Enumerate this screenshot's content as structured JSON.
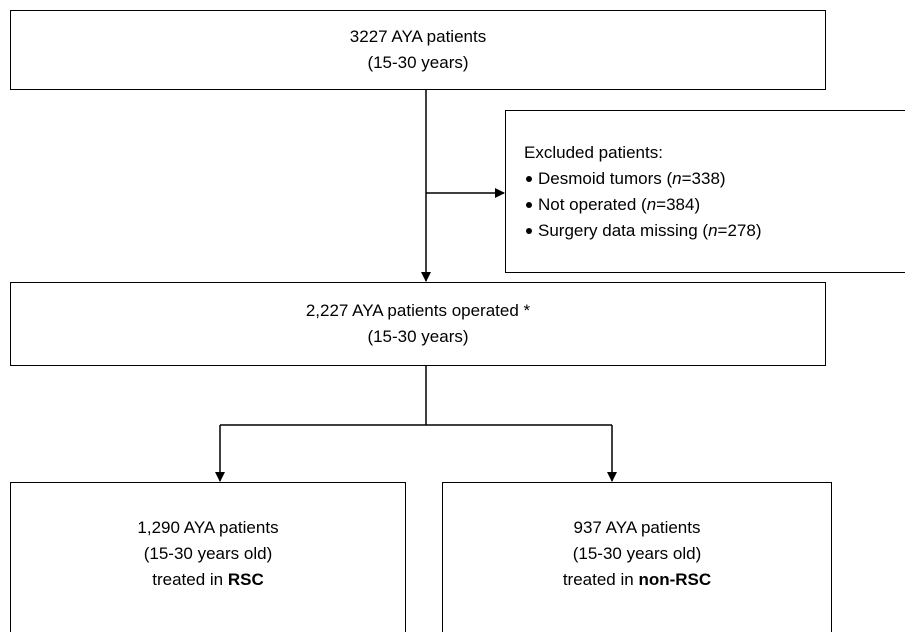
{
  "boxes": {
    "total": {
      "lines": [
        "3227 AYA patients",
        "(15-30 years)"
      ]
    },
    "excluded": {
      "title": "Excluded patients:",
      "items": [
        [
          "Desmoid tumors (",
          "n",
          "=338)"
        ],
        [
          "Not operated (",
          "n",
          "=384)"
        ],
        [
          "Surgery data missing (",
          "n",
          "=278)"
        ]
      ]
    },
    "operated": {
      "lines": [
        "2,227 AYA patients operated *",
        "(15-30 years)"
      ]
    },
    "rsc": {
      "lines": [
        "1,290 AYA patients",
        "(15-30 years old)"
      ],
      "treated": [
        "treated in ",
        "RSC"
      ]
    },
    "non_rsc": {
      "lines": [
        "937 AYA patients",
        "(15-30 years old)"
      ],
      "treated": [
        "treated in ",
        "non-RSC"
      ]
    }
  }
}
